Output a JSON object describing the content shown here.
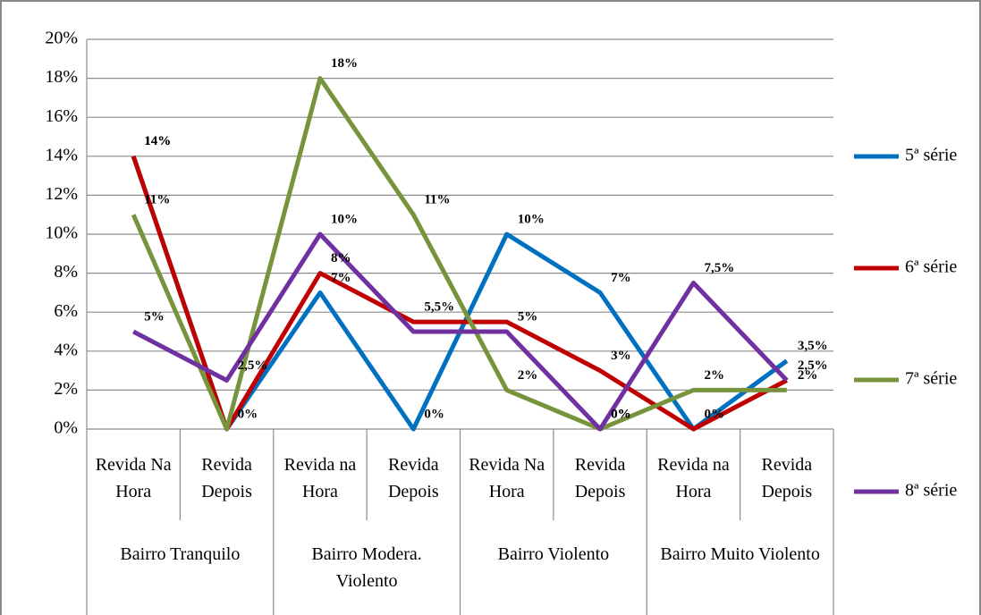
{
  "chart_data": {
    "type": "line",
    "categories": [
      "Revida Na Hora",
      "Revida Depois",
      "Revida na Hora",
      "Revida Depois",
      "Revida Na Hora",
      "Revida Depois",
      "Revida na Hora",
      "Revida Depois"
    ],
    "groups": [
      "Bairro Tranquilo",
      "Bairro Modera. Violento",
      "Bairro Violento",
      "Bairro Muito Violento"
    ],
    "series": [
      {
        "name": "5ª série",
        "color": "#0070c0",
        "values": [
          14,
          0,
          7,
          0,
          10,
          7,
          0,
          3.5
        ],
        "value_labels": [
          "14%",
          "0%",
          "7%",
          "0%",
          "10%",
          "7%",
          null,
          "3,5%"
        ]
      },
      {
        "name": "6ª série",
        "color": "#c00000",
        "values": [
          14,
          0,
          8,
          5.5,
          5.5,
          3,
          0,
          2.5
        ],
        "value_labels": [
          "14%",
          null,
          "8%",
          "5,5%",
          null,
          "3%",
          "0%",
          "2,5%"
        ]
      },
      {
        "name": "7ª série",
        "color": "#77933c",
        "values": [
          11,
          0,
          18,
          11,
          2,
          0,
          2,
          2
        ],
        "value_labels": [
          "11%",
          null,
          "18%",
          "11%",
          "2%",
          "0%",
          "2%",
          "2%"
        ]
      },
      {
        "name": "8ª série",
        "color": "#7030a0",
        "values": [
          5,
          2.5,
          10,
          5,
          5,
          0,
          7.5,
          2.5
        ],
        "value_labels": [
          "5%",
          "2,5%",
          "10%",
          null,
          "5%",
          "0%",
          "7,5%",
          null
        ]
      }
    ],
    "ylim": [
      0,
      20
    ],
    "yticks": [
      {
        "value": 0,
        "label": "0%"
      },
      {
        "value": 2,
        "label": "2%"
      },
      {
        "value": 4,
        "label": "4%"
      },
      {
        "value": 6,
        "label": "6%"
      },
      {
        "value": 8,
        "label": "8%"
      },
      {
        "value": 10,
        "label": "10%"
      },
      {
        "value": 12,
        "label": "12%"
      },
      {
        "value": 14,
        "label": "14%"
      },
      {
        "value": 16,
        "label": "16%"
      },
      {
        "value": 18,
        "label": "18%"
      },
      {
        "value": 20,
        "label": "20%"
      }
    ],
    "grid": true,
    "legend": "right"
  }
}
